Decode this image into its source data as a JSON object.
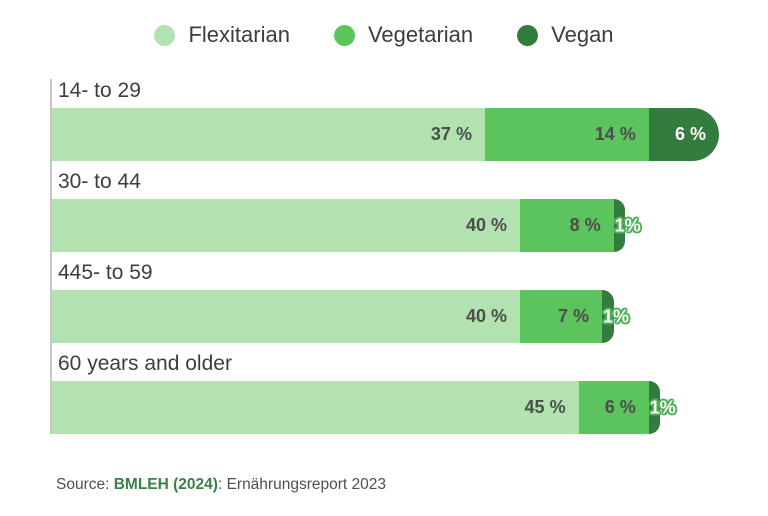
{
  "legend": {
    "items": [
      {
        "label": "Flexitarian",
        "color": "#b2e2b0"
      },
      {
        "label": "Vegetarian",
        "color": "#5cc45c"
      },
      {
        "label": "Vegan",
        "color": "#347c3d"
      }
    ]
  },
  "chart_data": {
    "type": "bar",
    "orientation": "horizontal",
    "stacked": true,
    "unit": "%",
    "xlim": [
      0,
      57
    ],
    "grid": false,
    "legend_position": "top",
    "value_labels": "inside-right",
    "categories": [
      "14- to 29",
      "30- to 44",
      "445- to 59",
      "60 years and older"
    ],
    "series": [
      {
        "name": "Flexitarian",
        "color": "#b2e2b0",
        "values": [
          37,
          40,
          40,
          45
        ],
        "labels": [
          "37 %",
          "40 %",
          "40 %",
          "45 %"
        ]
      },
      {
        "name": "Vegetarian",
        "color": "#5cc45c",
        "values": [
          14,
          8,
          7,
          6
        ],
        "labels": [
          "14 %",
          "8 %",
          "7 %",
          "6 %"
        ]
      },
      {
        "name": "Vegan",
        "color": "#347c3d",
        "values": [
          6,
          1,
          1,
          1
        ],
        "labels": [
          "6 %",
          "1%",
          "1%",
          "1%"
        ]
      }
    ]
  },
  "source": {
    "prefix": "Source: ",
    "reference": "BMLEH (2024)",
    "suffix": ": Ernährungsreport 2023"
  },
  "colors": {
    "value_label_text": "#4d4d4d",
    "category_text": "#3e3e3e",
    "axis_line": "#c8c8c8",
    "value_label_outline": "#4fb058",
    "source_text": "#4f4f4f",
    "source_reference": "#3a8145"
  }
}
